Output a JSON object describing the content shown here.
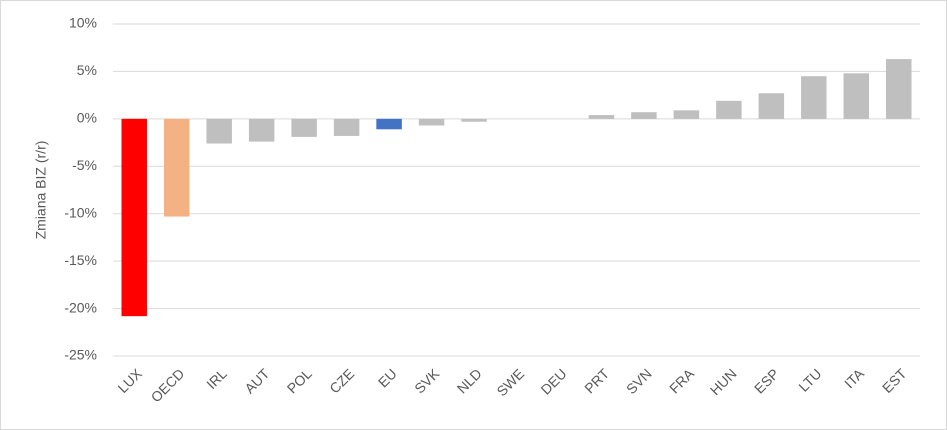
{
  "chart_data": {
    "type": "bar",
    "y_axis_label": "Zmiana BIZ (r/r)",
    "categories": [
      "LUX",
      "OECD",
      "IRL",
      "AUT",
      "POL",
      "CZE",
      "EU",
      "SVK",
      "NLD",
      "SWE",
      "DEU",
      "PRT",
      "SVN",
      "FRA",
      "HUN",
      "ESP",
      "LTU",
      "ITA",
      "EST"
    ],
    "values": [
      -20.8,
      -10.3,
      -2.6,
      -2.4,
      -1.9,
      -1.8,
      -1.1,
      -0.7,
      -0.3,
      0,
      0,
      0.4,
      0.7,
      0.9,
      1.9,
      2.7,
      4.5,
      4.8,
      6.3
    ],
    "colors": [
      "#ff0000",
      "#f4b183",
      "#bfbfbf",
      "#bfbfbf",
      "#bfbfbf",
      "#bfbfbf",
      "#4472c4",
      "#bfbfbf",
      "#bfbfbf",
      "#bfbfbf",
      "#bfbfbf",
      "#bfbfbf",
      "#bfbfbf",
      "#bfbfbf",
      "#bfbfbf",
      "#bfbfbf",
      "#bfbfbf",
      "#bfbfbf",
      "#bfbfbf"
    ],
    "ylim": [
      -25,
      10
    ],
    "yticks": [
      {
        "value": -25,
        "label": "-25%"
      },
      {
        "value": -20,
        "label": "-20%"
      },
      {
        "value": -15,
        "label": "-15%"
      },
      {
        "value": -10,
        "label": "-10%"
      },
      {
        "value": -5,
        "label": "-5%"
      },
      {
        "value": 0,
        "label": "0%"
      },
      {
        "value": 5,
        "label": "5%"
      },
      {
        "value": 10,
        "label": "10%"
      }
    ],
    "grid": true
  }
}
